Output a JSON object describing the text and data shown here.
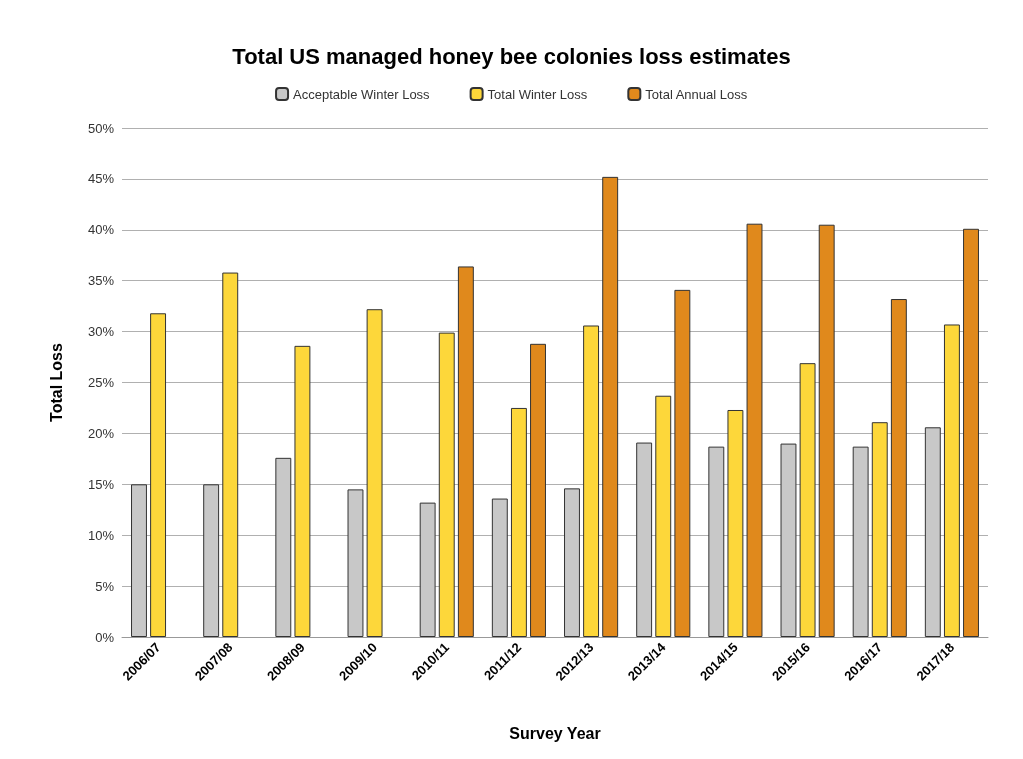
{
  "chart_data": {
    "type": "bar",
    "title": "Total US managed honey bee colonies loss estimates",
    "xlabel": "Survey Year",
    "ylabel": "Total Loss",
    "categories": [
      "2006/07",
      "2007/08",
      "2008/09",
      "2009/10",
      "2010/11",
      "2011/12",
      "2012/13",
      "2013/14",
      "2014/15",
      "2015/16",
      "2016/17",
      "2017/18"
    ],
    "series": [
      {
        "name": "Acceptable Winter Loss",
        "color": "#c8c8c8",
        "values": [
          15,
          15,
          17.6,
          14.5,
          13.2,
          13.6,
          14.6,
          19.1,
          18.7,
          19,
          18.7,
          20.6
        ]
      },
      {
        "name": "Total Winter Loss",
        "color": "#fdd73a",
        "values": [
          31.8,
          35.8,
          28.6,
          32.2,
          29.9,
          22.5,
          30.6,
          23.7,
          22.3,
          26.9,
          21.1,
          30.7
        ]
      },
      {
        "name": "Total Annual Loss",
        "color": "#e0891c",
        "values": [
          null,
          null,
          null,
          null,
          36.4,
          28.8,
          45.2,
          34.1,
          40.6,
          40.5,
          33.2,
          40.1
        ]
      }
    ],
    "ylim": [
      0,
      50
    ],
    "yticks": [
      {
        "value": 0,
        "label": "0%"
      },
      {
        "value": 5,
        "label": "5%"
      },
      {
        "value": 10,
        "label": "10%"
      },
      {
        "value": 15,
        "label": "15%"
      },
      {
        "value": 20,
        "label": "20%"
      },
      {
        "value": 25,
        "label": "25%"
      },
      {
        "value": 30,
        "label": "30%"
      },
      {
        "value": 35,
        "label": "35%"
      },
      {
        "value": 40,
        "label": "40%"
      },
      {
        "value": 45,
        "label": "45%"
      },
      {
        "value": 50,
        "label": "50%"
      }
    ],
    "grid": "y",
    "legend": "top"
  }
}
